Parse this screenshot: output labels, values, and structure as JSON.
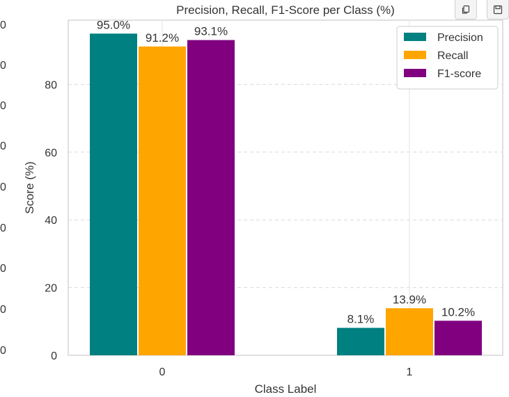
{
  "toolbar": {
    "copy_icon": "copy-icon",
    "save_icon": "save-icon"
  },
  "left_cut_labels": [
    "0",
    "0",
    "0",
    "0",
    "0",
    "0",
    "0",
    "0",
    "0"
  ],
  "chart_data": {
    "type": "bar",
    "title": "Precision, Recall, F1-Score per Class (%)",
    "xlabel": "Class Label",
    "ylabel": "Score (%)",
    "categories": [
      "0",
      "1"
    ],
    "series": [
      {
        "name": "Precision",
        "color": "#008080",
        "values": [
          95.0,
          8.1
        ],
        "labels": [
          "95.0%",
          "8.1%"
        ]
      },
      {
        "name": "Recall",
        "color": "#FFA500",
        "values": [
          91.2,
          13.9
        ],
        "labels": [
          "91.2%",
          "13.9%"
        ]
      },
      {
        "name": "F1-score",
        "color": "#800080",
        "values": [
          93.1,
          10.2
        ],
        "labels": [
          "93.1%",
          "10.2%"
        ]
      }
    ],
    "ylim": [
      0,
      100
    ],
    "yticks": [
      0,
      20,
      40,
      60,
      80
    ],
    "grid": true,
    "legend": "top-right"
  }
}
